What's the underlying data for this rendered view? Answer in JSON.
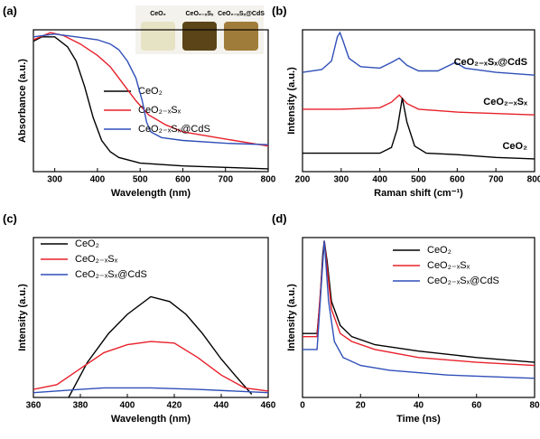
{
  "chart_data": [
    {
      "type": "line",
      "panel_label": "(a)",
      "xlabel": "Wavelength (nm)",
      "ylabel": "Absorbance (a.u.)",
      "xlim": [
        250,
        800
      ],
      "xticks": [
        300,
        400,
        500,
        600,
        700,
        800
      ],
      "ylim": [
        0,
        100
      ],
      "legend": "lower right",
      "inset_labels": [
        "CeO₂",
        "CeO₂₋ₓSₓ",
        "CeO₂₋ₓSₓ@CdS"
      ],
      "series": [
        {
          "name": "CeO₂",
          "color": "#000000",
          "x": [
            250,
            270,
            300,
            330,
            350,
            370,
            390,
            410,
            430,
            450,
            500,
            600,
            700,
            800
          ],
          "values": [
            92,
            95,
            95,
            88,
            78,
            60,
            38,
            22,
            14,
            10,
            6,
            4,
            3,
            2
          ]
        },
        {
          "name": "CeO₂₋ₓSₓ",
          "color": "#e8202a",
          "x": [
            250,
            290,
            320,
            360,
            400,
            430,
            460,
            490,
            520,
            560,
            600,
            700,
            800
          ],
          "values": [
            93,
            98,
            96,
            90,
            82,
            74,
            62,
            50,
            40,
            33,
            28,
            23,
            18
          ]
        },
        {
          "name": "CeO₂₋ₓSₓ@CdS",
          "color": "#2f4fb8",
          "x": [
            250,
            300,
            350,
            400,
            430,
            450,
            470,
            490,
            505,
            515,
            525,
            550,
            600,
            700,
            800
          ],
          "values": [
            95,
            97,
            95,
            93,
            90,
            86,
            78,
            66,
            50,
            35,
            28,
            24,
            22,
            20,
            19
          ]
        }
      ]
    },
    {
      "type": "line",
      "panel_label": "(b)",
      "xlabel": "Raman shift (cm⁻¹)",
      "ylabel": "Intensity (a.u.)",
      "xlim": [
        200,
        800
      ],
      "xticks": [
        200,
        300,
        400,
        500,
        600,
        700,
        800
      ],
      "ylim": [
        0,
        100
      ],
      "legend": "on-curves",
      "series": [
        {
          "name": "CeO₂₋ₓSₓ@CdS",
          "color": "#2f4fb8",
          "x": [
            200,
            250,
            275,
            290,
            297,
            305,
            320,
            350,
            400,
            430,
            450,
            470,
            500,
            550,
            580,
            595,
            620,
            700,
            800
          ],
          "values": [
            70,
            72,
            78,
            95,
            98,
            92,
            80,
            74,
            73,
            77,
            80,
            75,
            71,
            71,
            75,
            77,
            73,
            70,
            68
          ]
        },
        {
          "name": "CeO₂₋ₓSₓ",
          "color": "#e8202a",
          "x": [
            200,
            300,
            400,
            430,
            450,
            470,
            500,
            600,
            800
          ],
          "values": [
            44,
            44,
            45,
            49,
            54,
            48,
            44,
            42,
            40
          ]
        },
        {
          "name": "CeO₂",
          "color": "#000000",
          "x": [
            200,
            400,
            430,
            445,
            458,
            470,
            490,
            520,
            600,
            700,
            800
          ],
          "values": [
            13,
            13,
            17,
            30,
            52,
            35,
            18,
            13,
            12,
            10,
            9
          ]
        }
      ]
    },
    {
      "type": "line",
      "panel_label": "(c)",
      "xlabel": "Wavelength (nm)",
      "ylabel": "Intensity (a.u.)",
      "xlim": [
        360,
        460
      ],
      "xticks": [
        360,
        380,
        400,
        420,
        440,
        460
      ],
      "ylim": [
        0,
        100
      ],
      "legend": "upper left",
      "series": [
        {
          "name": "CeO₂",
          "color": "#000000",
          "x": [
            375,
            383,
            392,
            400,
            410,
            418,
            425,
            432,
            440,
            447,
            453
          ],
          "values": [
            0,
            22,
            40,
            52,
            63,
            60,
            52,
            40,
            24,
            12,
            2
          ]
        },
        {
          "name": "CeO₂₋ₓSₓ",
          "color": "#e8202a",
          "x": [
            360,
            370,
            380,
            390,
            400,
            410,
            420,
            430,
            440,
            450,
            460
          ],
          "values": [
            5,
            8,
            18,
            28,
            33,
            35,
            34,
            25,
            14,
            6,
            4
          ]
        },
        {
          "name": "CeO₂₋ₓSₓ@CdS",
          "color": "#2f4fb8",
          "x": [
            360,
            380,
            390,
            410,
            430,
            460
          ],
          "values": [
            3,
            5,
            6,
            6,
            5,
            3
          ]
        }
      ]
    },
    {
      "type": "line",
      "panel_label": "(d)",
      "xlabel": "Time (ns)",
      "ylabel": "Intensity (a.u.)",
      "xlim": [
        0,
        80
      ],
      "xticks": [
        0,
        20,
        40,
        60,
        80
      ],
      "ylim": [
        0,
        100
      ],
      "legend": "upper right",
      "series": [
        {
          "name": "CeO₂",
          "color": "#000000",
          "x": [
            0,
            5,
            6,
            7,
            7.5,
            8.5,
            10,
            13,
            17,
            25,
            40,
            60,
            80
          ],
          "values": [
            40,
            40,
            60,
            90,
            98,
            85,
            60,
            45,
            38,
            33,
            29,
            25,
            22
          ]
        },
        {
          "name": "CeO₂₋ₓSₓ",
          "color": "#e8202a",
          "x": [
            0,
            5,
            7.5,
            10,
            13,
            17,
            25,
            40,
            60,
            80
          ],
          "values": [
            38,
            38,
            98,
            55,
            40,
            35,
            30,
            25,
            22,
            20
          ]
        },
        {
          "name": "CeO₂₋ₓSₓ@CdS",
          "color": "#2f4fb8",
          "x": [
            0,
            5,
            7.5,
            9,
            11,
            14,
            20,
            30,
            50,
            80
          ],
          "values": [
            30,
            30,
            98,
            60,
            35,
            25,
            20,
            17,
            14,
            12
          ]
        }
      ]
    }
  ]
}
